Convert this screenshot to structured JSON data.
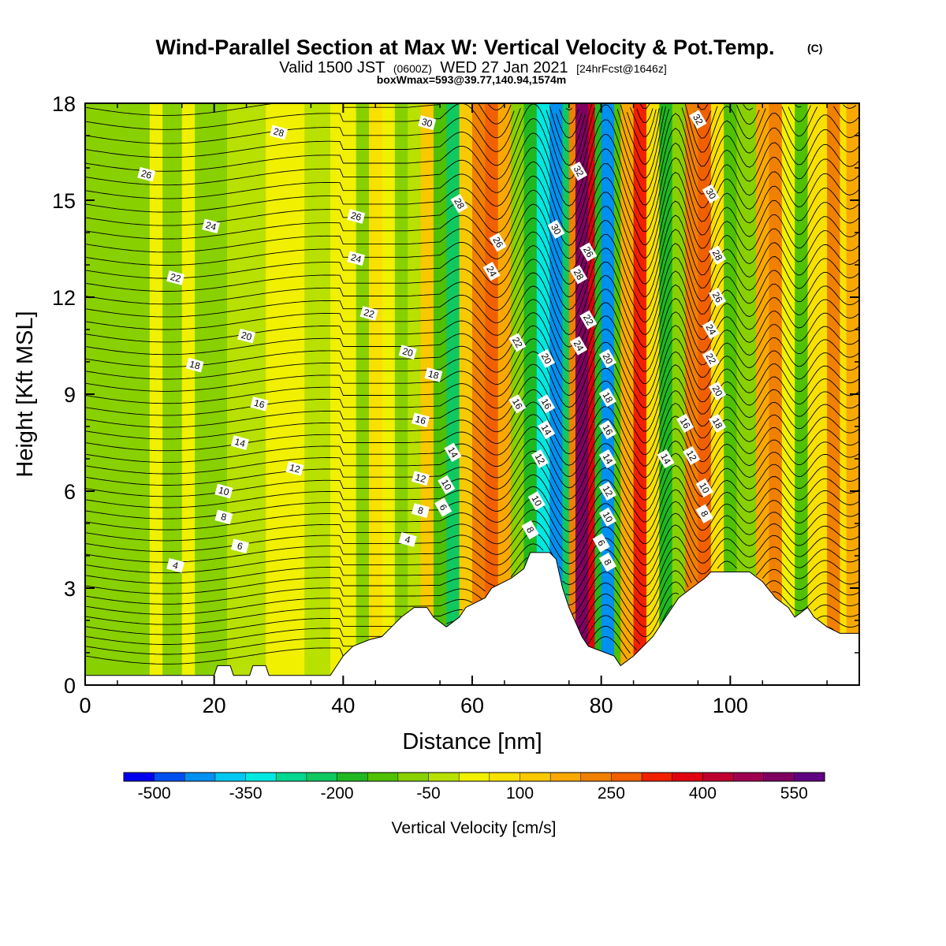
{
  "header": {
    "title": "Wind-Parallel Section at Max W: Vertical Velocity & Pot.Temp.",
    "copyright": "(C)",
    "valid_prefix": "Valid 1500 JST",
    "valid_zulu": "(0600Z)",
    "valid_date": "WED 27 Jan 2021",
    "forecast": "[24hrFcst@1646z]",
    "box_info": "boxWmax=593@39.77,140.94,1574m"
  },
  "chart_data": {
    "type": "heatmap",
    "title": "Wind-Parallel Section at Max W: Vertical Velocity & Pot.Temp.",
    "xlabel": "Distance [nm]",
    "ylabel": "Height [Kft MSL]",
    "xlim": [
      0,
      120
    ],
    "ylim": [
      0,
      18
    ],
    "x_ticks": [
      "0",
      "20",
      "40",
      "60",
      "80",
      "100"
    ],
    "y_ticks": [
      "0",
      "3",
      "6",
      "9",
      "12",
      "15",
      "18"
    ],
    "colorbar": {
      "label": "Vertical Velocity [cm/s]",
      "tick_labels": [
        "-500",
        "-350",
        "-200",
        "-50",
        "100",
        "250",
        "400",
        "550"
      ],
      "tick_values": [
        -500,
        -350,
        -200,
        -50,
        100,
        250,
        400,
        550
      ],
      "colors": [
        "#0000f0",
        "#0050f0",
        "#0090f0",
        "#00c8f0",
        "#00e8e0",
        "#00d890",
        "#10c860",
        "#20b820",
        "#50c000",
        "#88d000",
        "#b8e000",
        "#f0f000",
        "#f8e000",
        "#f8c800",
        "#f8a800",
        "#f08000",
        "#f06000",
        "#f02000",
        "#e00010",
        "#c00030",
        "#a00050",
        "#800060",
        "#600080"
      ]
    },
    "velocity_bands": [
      {
        "x0": 0,
        "x1": 10,
        "w": -80
      },
      {
        "x0": 10,
        "x1": 12,
        "w": 0
      },
      {
        "x0": 12,
        "x1": 15,
        "w": -80
      },
      {
        "x0": 15,
        "x1": 17,
        "w": 0
      },
      {
        "x0": 17,
        "x1": 22,
        "w": -90
      },
      {
        "x0": 22,
        "x1": 28,
        "w": -60
      },
      {
        "x0": 28,
        "x1": 34,
        "w": -20
      },
      {
        "x0": 34,
        "x1": 38,
        "w": -70
      },
      {
        "x0": 38,
        "x1": 40,
        "w": -20
      },
      {
        "x0": 40,
        "x1": 42,
        "w": 20
      },
      {
        "x0": 42,
        "x1": 44,
        "w": -110
      },
      {
        "x0": 44,
        "x1": 46,
        "w": 60
      },
      {
        "x0": 46,
        "x1": 48,
        "w": -20
      },
      {
        "x0": 48,
        "x1": 50,
        "w": -120
      },
      {
        "x0": 50,
        "x1": 52,
        "w": -30
      },
      {
        "x0": 52,
        "x1": 54,
        "w": 100
      },
      {
        "x0": 54,
        "x1": 56,
        "w": -150
      },
      {
        "x0": 56,
        "x1": 58,
        "w": -260
      },
      {
        "x0": 58,
        "x1": 60,
        "w": 80
      },
      {
        "x0": 60,
        "x1": 62,
        "w": 220
      },
      {
        "x0": 62,
        "x1": 64,
        "w": 270
      },
      {
        "x0": 64,
        "x1": 66,
        "w": 150
      },
      {
        "x0": 66,
        "x1": 68,
        "w": -120
      },
      {
        "x0": 68,
        "x1": 70,
        "w": -200
      },
      {
        "x0": 70,
        "x1": 72,
        "w": -330
      },
      {
        "x0": 72,
        "x1": 74,
        "w": -460
      },
      {
        "x0": 74,
        "x1": 75,
        "w": -250
      },
      {
        "x0": 75,
        "x1": 76,
        "w": 200
      },
      {
        "x0": 76,
        "x1": 78,
        "w": 520
      },
      {
        "x0": 78,
        "x1": 79,
        "w": 330
      },
      {
        "x0": 79,
        "x1": 80,
        "w": -210
      },
      {
        "x0": 80,
        "x1": 82,
        "w": -450
      },
      {
        "x0": 82,
        "x1": 83,
        "w": -150
      },
      {
        "x0": 83,
        "x1": 85,
        "w": 150
      },
      {
        "x0": 85,
        "x1": 87,
        "w": 280
      },
      {
        "x0": 87,
        "x1": 89,
        "w": 60
      },
      {
        "x0": 89,
        "x1": 91,
        "w": -180
      },
      {
        "x0": 91,
        "x1": 93,
        "w": -120
      },
      {
        "x0": 93,
        "x1": 95,
        "w": 180
      },
      {
        "x0": 95,
        "x1": 97,
        "w": 250
      },
      {
        "x0": 97,
        "x1": 99,
        "w": 60
      },
      {
        "x0": 99,
        "x1": 101,
        "w": -150
      },
      {
        "x0": 101,
        "x1": 104,
        "w": -100
      },
      {
        "x0": 104,
        "x1": 106,
        "w": 130
      },
      {
        "x0": 106,
        "x1": 108,
        "w": 210
      },
      {
        "x0": 108,
        "x1": 110,
        "w": 20
      },
      {
        "x0": 110,
        "x1": 112,
        "w": -160
      },
      {
        "x0": 112,
        "x1": 115,
        "w": 60
      },
      {
        "x0": 115,
        "x1": 117,
        "w": 200
      },
      {
        "x0": 117,
        "x1": 118,
        "w": 30
      },
      {
        "x0": 118,
        "x1": 120,
        "w": 160
      }
    ],
    "terrain": [
      [
        0,
        0.3
      ],
      [
        12,
        0.3
      ],
      [
        20,
        0.3
      ],
      [
        20.5,
        0.6
      ],
      [
        22.5,
        0.6
      ],
      [
        23,
        0.3
      ],
      [
        25.5,
        0.3
      ],
      [
        26,
        0.6
      ],
      [
        28,
        0.6
      ],
      [
        28.5,
        0.3
      ],
      [
        38,
        0.3
      ],
      [
        39,
        0.6
      ],
      [
        40,
        0.9
      ],
      [
        41.5,
        1.2
      ],
      [
        44,
        1.4
      ],
      [
        46,
        1.5
      ],
      [
        47.5,
        1.8
      ],
      [
        49,
        2.1
      ],
      [
        51,
        2.4
      ],
      [
        53,
        2.4
      ],
      [
        54,
        2.1
      ],
      [
        56,
        1.8
      ],
      [
        58,
        2.1
      ],
      [
        59,
        2.4
      ],
      [
        62,
        2.7
      ],
      [
        63,
        3.0
      ],
      [
        66,
        3.3
      ],
      [
        68,
        3.6
      ],
      [
        69,
        4.1
      ],
      [
        72,
        4.1
      ],
      [
        73,
        3.9
      ],
      [
        74,
        3.0
      ],
      [
        75,
        2.4
      ],
      [
        77,
        1.5
      ],
      [
        78,
        1.2
      ],
      [
        82,
        0.9
      ],
      [
        83,
        0.6
      ],
      [
        85,
        0.9
      ],
      [
        88,
        1.5
      ],
      [
        90,
        2.1
      ],
      [
        92,
        2.7
      ],
      [
        94,
        3.0
      ],
      [
        96,
        3.3
      ],
      [
        97,
        3.5
      ],
      [
        103,
        3.5
      ],
      [
        105,
        3.2
      ],
      [
        107,
        2.7
      ],
      [
        109,
        2.4
      ],
      [
        110,
        2.1
      ],
      [
        112,
        2.4
      ],
      [
        113,
        2.1
      ],
      [
        115,
        1.8
      ],
      [
        117,
        1.6
      ],
      [
        120,
        1.6
      ]
    ],
    "contour_labels": [
      {
        "x": 9.5,
        "y": 15.8,
        "label": "26"
      },
      {
        "x": 30,
        "y": 17.1,
        "label": "28"
      },
      {
        "x": 53,
        "y": 17.4,
        "label": "30"
      },
      {
        "x": 95,
        "y": 17.5,
        "label": "32"
      },
      {
        "x": 19.5,
        "y": 14.2,
        "label": "24"
      },
      {
        "x": 42,
        "y": 14.5,
        "label": "26"
      },
      {
        "x": 58,
        "y": 14.9,
        "label": "28"
      },
      {
        "x": 76.5,
        "y": 15.9,
        "label": "32"
      },
      {
        "x": 73,
        "y": 14.1,
        "label": "30"
      },
      {
        "x": 97,
        "y": 15.2,
        "label": "30"
      },
      {
        "x": 14,
        "y": 12.6,
        "label": "22"
      },
      {
        "x": 42,
        "y": 13.2,
        "label": "24"
      },
      {
        "x": 64,
        "y": 13.7,
        "label": "26"
      },
      {
        "x": 78,
        "y": 13.4,
        "label": "26"
      },
      {
        "x": 98,
        "y": 13.3,
        "label": "28"
      },
      {
        "x": 63,
        "y": 12.8,
        "label": "24"
      },
      {
        "x": 76.5,
        "y": 12.7,
        "label": "28"
      },
      {
        "x": 98,
        "y": 12.0,
        "label": "26"
      },
      {
        "x": 44,
        "y": 11.5,
        "label": "22"
      },
      {
        "x": 78,
        "y": 11.3,
        "label": "22"
      },
      {
        "x": 97,
        "y": 11.0,
        "label": "24"
      },
      {
        "x": 25,
        "y": 10.8,
        "label": "20"
      },
      {
        "x": 50,
        "y": 10.3,
        "label": "20"
      },
      {
        "x": 67,
        "y": 10.6,
        "label": "22"
      },
      {
        "x": 71.5,
        "y": 10.1,
        "label": "20"
      },
      {
        "x": 76.5,
        "y": 10.5,
        "label": "24"
      },
      {
        "x": 81,
        "y": 10.1,
        "label": "20"
      },
      {
        "x": 97,
        "y": 10.1,
        "label": "22"
      },
      {
        "x": 17,
        "y": 9.9,
        "label": "18"
      },
      {
        "x": 54,
        "y": 9.6,
        "label": "18"
      },
      {
        "x": 98,
        "y": 9.1,
        "label": "20"
      },
      {
        "x": 27,
        "y": 8.7,
        "label": "16"
      },
      {
        "x": 67,
        "y": 8.7,
        "label": "16"
      },
      {
        "x": 71.5,
        "y": 8.7,
        "label": "16"
      },
      {
        "x": 81,
        "y": 8.9,
        "label": "18"
      },
      {
        "x": 93,
        "y": 8.1,
        "label": "16"
      },
      {
        "x": 98,
        "y": 8.1,
        "label": "18"
      },
      {
        "x": 52,
        "y": 8.2,
        "label": "16"
      },
      {
        "x": 71.5,
        "y": 7.9,
        "label": "14"
      },
      {
        "x": 81,
        "y": 7.9,
        "label": "16"
      },
      {
        "x": 24,
        "y": 7.5,
        "label": "14"
      },
      {
        "x": 57,
        "y": 7.2,
        "label": "14"
      },
      {
        "x": 90,
        "y": 7.0,
        "label": "14"
      },
      {
        "x": 94,
        "y": 7.1,
        "label": "12"
      },
      {
        "x": 70.5,
        "y": 7.0,
        "label": "12"
      },
      {
        "x": 81,
        "y": 7.0,
        "label": "14"
      },
      {
        "x": 32.5,
        "y": 6.7,
        "label": "12"
      },
      {
        "x": 52,
        "y": 6.4,
        "label": "12"
      },
      {
        "x": 56,
        "y": 6.2,
        "label": "10"
      },
      {
        "x": 81,
        "y": 6.0,
        "label": "12"
      },
      {
        "x": 96,
        "y": 6.1,
        "label": "10"
      },
      {
        "x": 21.5,
        "y": 6.0,
        "label": "10"
      },
      {
        "x": 70,
        "y": 5.7,
        "label": "10"
      },
      {
        "x": 52,
        "y": 5.4,
        "label": "8"
      },
      {
        "x": 55.5,
        "y": 5.5,
        "label": "6"
      },
      {
        "x": 81,
        "y": 5.2,
        "label": "10"
      },
      {
        "x": 96,
        "y": 5.3,
        "label": "8"
      },
      {
        "x": 21.5,
        "y": 5.2,
        "label": "8"
      },
      {
        "x": 69,
        "y": 4.8,
        "label": "8"
      },
      {
        "x": 50,
        "y": 4.5,
        "label": "4"
      },
      {
        "x": 80,
        "y": 4.4,
        "label": "6"
      },
      {
        "x": 24,
        "y": 4.3,
        "label": "6"
      },
      {
        "x": 81,
        "y": 3.8,
        "label": "8"
      },
      {
        "x": 14,
        "y": 3.7,
        "label": "4"
      }
    ]
  }
}
